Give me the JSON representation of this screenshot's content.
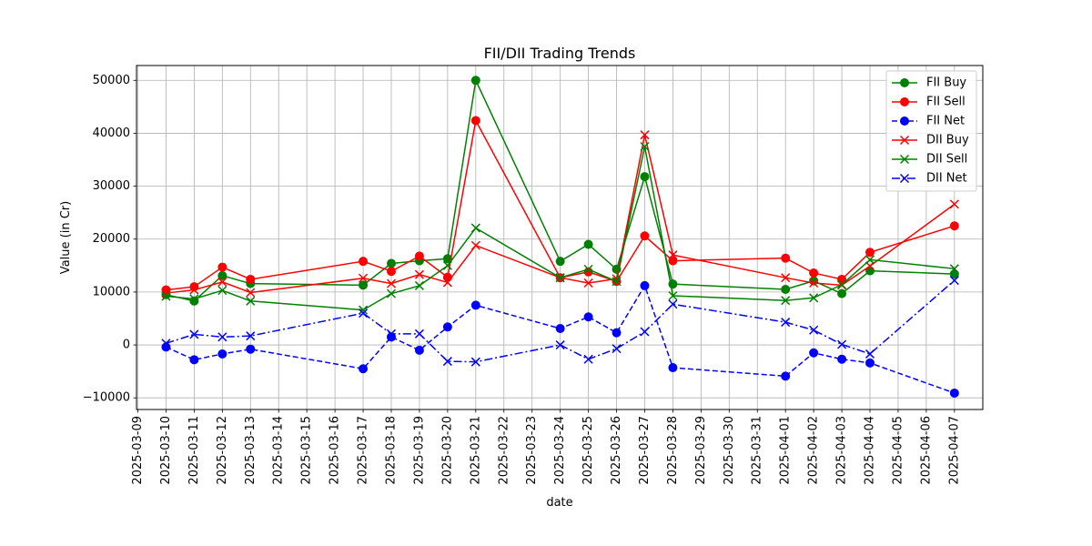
{
  "chart_data": {
    "type": "line",
    "title": "FII/DII Trading Trends",
    "xlabel": "date",
    "ylabel": "Value (in Cr)",
    "x_ticks": [
      "2025-03-09",
      "2025-03-10",
      "2025-03-11",
      "2025-03-12",
      "2025-03-13",
      "2025-03-14",
      "2025-03-15",
      "2025-03-16",
      "2025-03-17",
      "2025-03-18",
      "2025-03-19",
      "2025-03-20",
      "2025-03-21",
      "2025-03-22",
      "2025-03-23",
      "2025-03-24",
      "2025-03-25",
      "2025-03-26",
      "2025-03-27",
      "2025-03-28",
      "2025-03-29",
      "2025-03-30",
      "2025-03-31",
      "2025-04-01",
      "2025-04-02",
      "2025-04-03",
      "2025-04-04",
      "2025-04-05",
      "2025-04-06",
      "2025-04-07"
    ],
    "y_ticks": [
      -10000,
      0,
      10000,
      20000,
      30000,
      40000,
      50000
    ],
    "y_tick_labels": [
      "−10000",
      "0",
      "10000",
      "20000",
      "30000",
      "40000",
      "50000"
    ],
    "xlim": [
      "2025-03-08T22:50",
      "2025-04-08T00:10"
    ],
    "ylim": [
      -12200,
      52800
    ],
    "grid": true,
    "legend_position": "top-right",
    "x": [
      "2025-03-10",
      "2025-03-11",
      "2025-03-12",
      "2025-03-13",
      "2025-03-17",
      "2025-03-18",
      "2025-03-19",
      "2025-03-20",
      "2025-03-21",
      "2025-03-24",
      "2025-03-25",
      "2025-03-26",
      "2025-03-27",
      "2025-03-28",
      "2025-04-01",
      "2025-04-02",
      "2025-04-03",
      "2025-04-04",
      "2025-04-07"
    ],
    "series": [
      {
        "name": "FII Buy",
        "color": "#008000",
        "marker": "circle",
        "dash": "solid",
        "values": [
          9500,
          8300,
          13100,
          11600,
          11300,
          15400,
          15900,
          16300,
          50000,
          15800,
          19000,
          14300,
          31800,
          11500,
          10500,
          12100,
          9700,
          14000,
          13400
        ]
      },
      {
        "name": "FII Sell",
        "color": "#ff0000",
        "marker": "circle",
        "dash": "solid",
        "values": [
          10400,
          11000,
          14700,
          12400,
          15800,
          13900,
          16800,
          12800,
          42400,
          12700,
          13800,
          12000,
          20600,
          15900,
          16400,
          13600,
          12400,
          17500,
          22500
        ]
      },
      {
        "name": "FII Net",
        "color": "#0000ff",
        "marker": "circle",
        "dash": "dashed",
        "values": [
          -400,
          -2800,
          -1700,
          -800,
          -4500,
          1500,
          -1000,
          3400,
          7500,
          3100,
          5300,
          2300,
          11200,
          -4300,
          -5900,
          -1500,
          -2700,
          -3400,
          -9100
        ]
      },
      {
        "name": "DII Buy",
        "color": "#ff0000",
        "marker": "x",
        "dash": "solid",
        "values": [
          9800,
          10400,
          11900,
          9900,
          12600,
          11600,
          13300,
          11800,
          18800,
          12700,
          11700,
          12500,
          39700,
          17000,
          12700,
          11700,
          11300,
          14900,
          26600
        ]
      },
      {
        "name": "DII Sell",
        "color": "#008000",
        "marker": "x",
        "dash": "solid",
        "values": [
          9200,
          8700,
          10300,
          8300,
          6600,
          9700,
          11200,
          15000,
          22100,
          12700,
          14300,
          12000,
          37500,
          9300,
          8400,
          8900,
          11400,
          16100,
          14400
        ]
      },
      {
        "name": "DII Net",
        "color": "#0000ff",
        "marker": "x",
        "dash": "dashdot",
        "values": [
          300,
          2000,
          1500,
          1700,
          6000,
          2100,
          2100,
          -3100,
          -3200,
          0,
          -2700,
          -700,
          2500,
          7700,
          4300,
          2800,
          100,
          -1700,
          12200
        ]
      }
    ]
  }
}
